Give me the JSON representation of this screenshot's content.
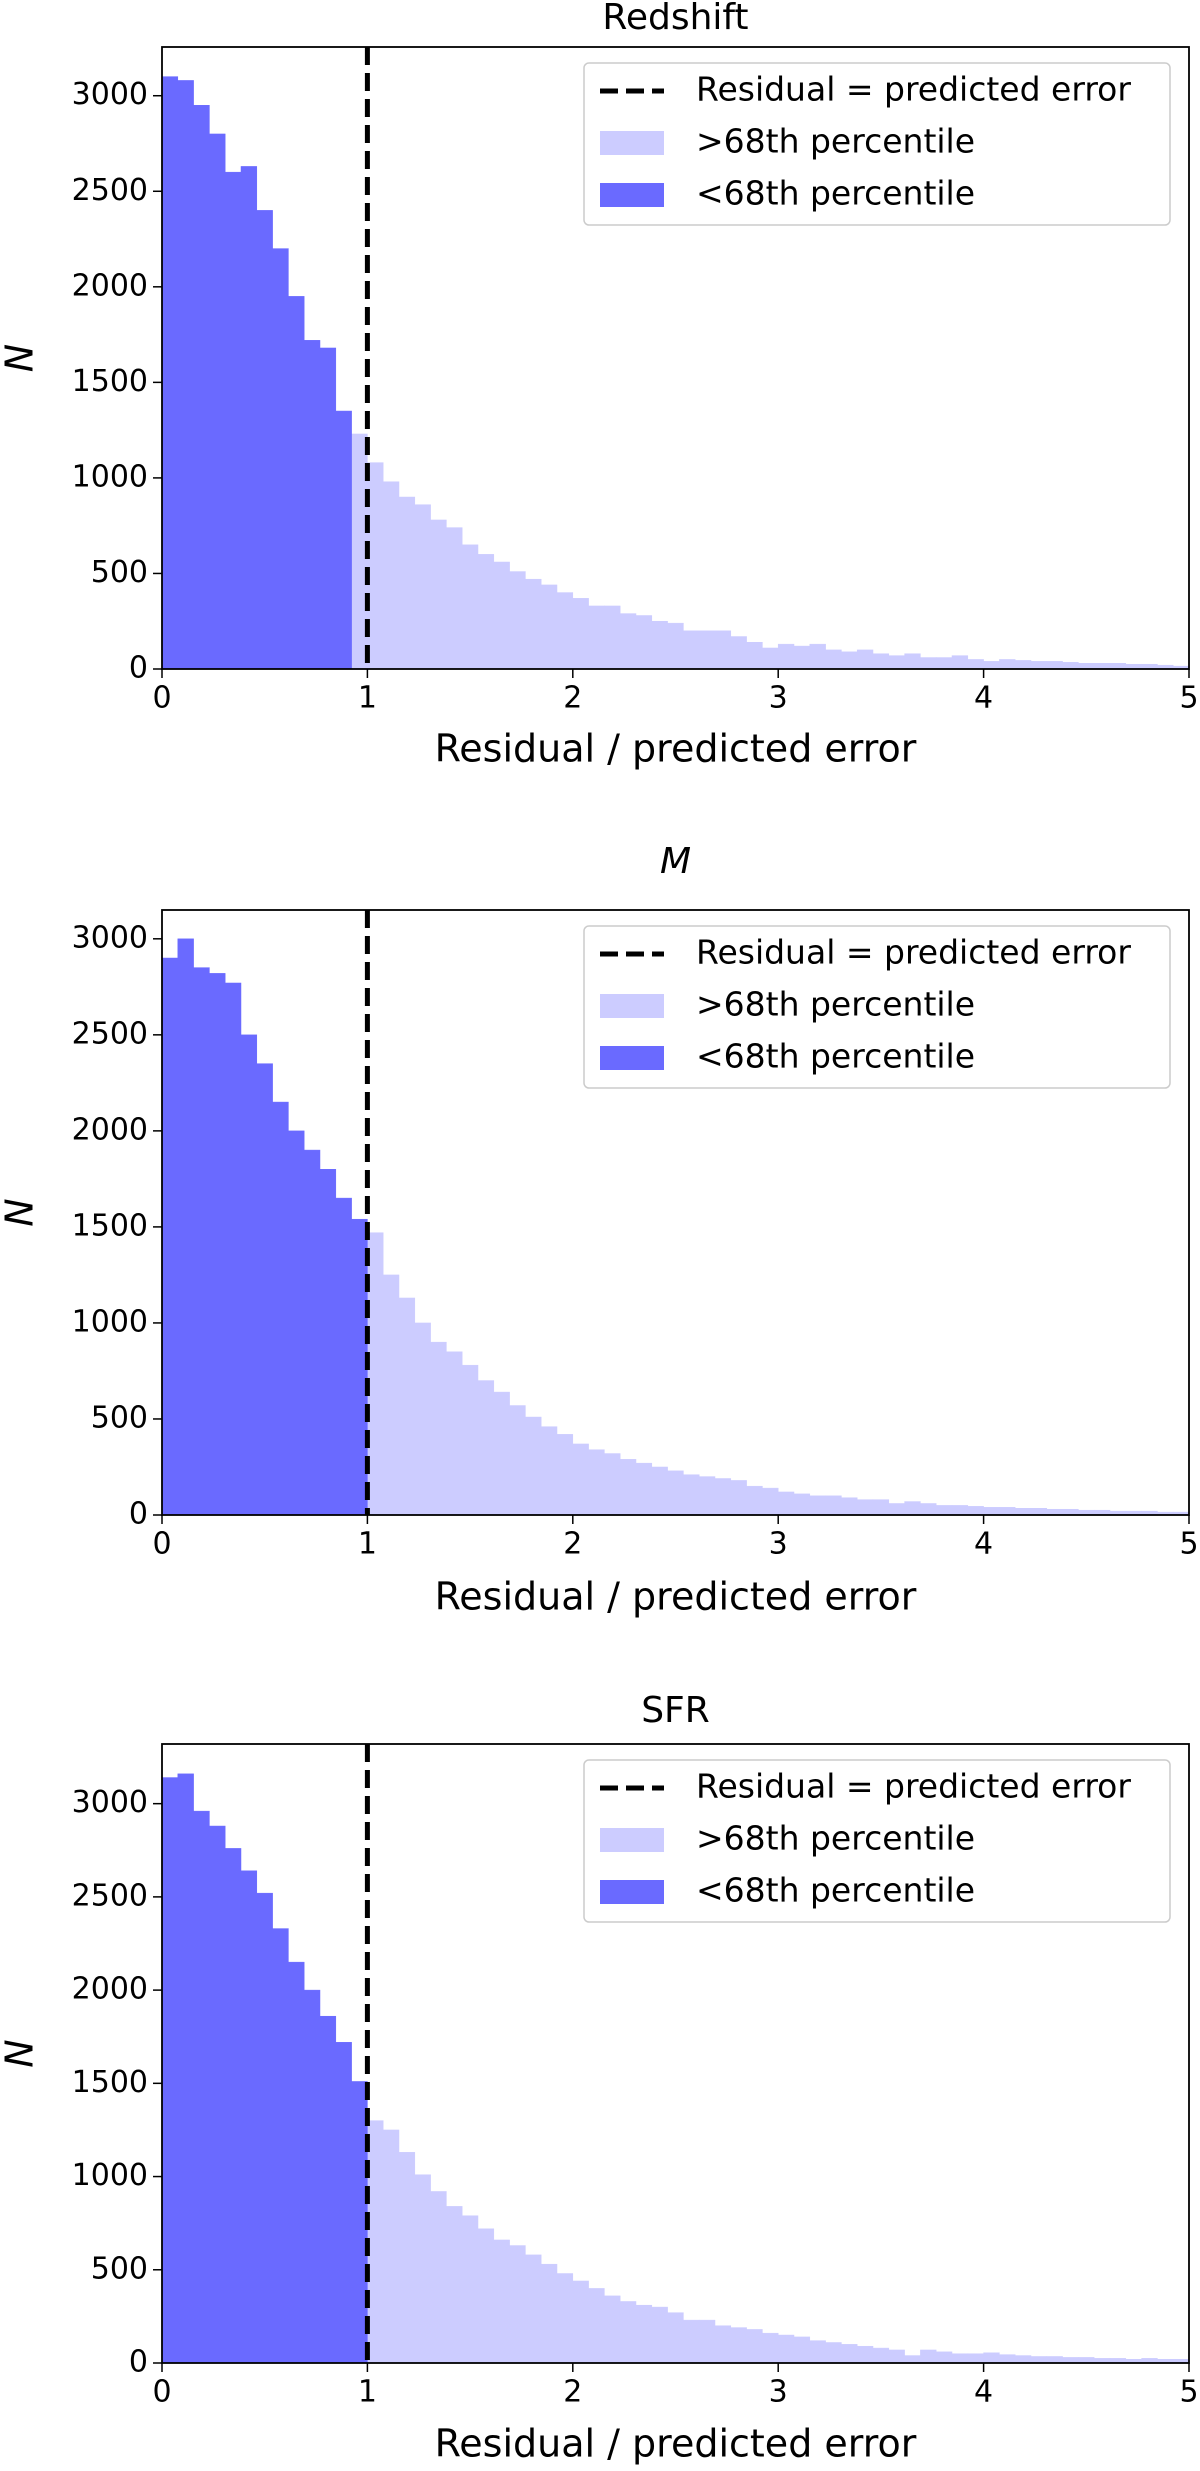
{
  "chart_data": [
    {
      "type": "histogram",
      "title": "Redshift",
      "x_label": "Residual / predicted error",
      "y_label": "N",
      "bins": [
        0,
        0.0769,
        0.1538,
        0.2308,
        0.3077,
        0.3846,
        0.4615,
        0.5385,
        0.6154,
        0.6923,
        0.7692,
        0.8462,
        0.9231,
        1,
        1.0769,
        1.1538,
        1.2308,
        1.3077,
        1.3846,
        1.4615,
        1.5385,
        1.6154,
        1.6923,
        1.7692,
        1.8462,
        1.9231,
        2,
        2.0769,
        2.1538,
        2.2308,
        2.3077,
        2.3846,
        2.4615,
        2.5385,
        2.6154,
        2.6923,
        2.7692,
        2.8462,
        2.9231,
        3,
        3.0769,
        3.1538,
        3.2308,
        3.3077,
        3.3846,
        3.4615,
        3.5385,
        3.6154,
        3.6923,
        3.7692,
        3.8462,
        3.9231,
        4,
        4.0769,
        4.1538,
        4.2308,
        4.3077,
        4.3846,
        4.4615,
        4.5385,
        4.6154,
        4.6923,
        4.7692,
        4.8462,
        4.9231,
        5
      ],
      "series": [
        {
          "name": ">68th percentile",
          "color": "#ccccff",
          "values": [
            null,
            null,
            null,
            null,
            null,
            null,
            null,
            null,
            null,
            null,
            null,
            null,
            1230,
            1080,
            980,
            900,
            860,
            780,
            740,
            650,
            600,
            560,
            510,
            470,
            440,
            400,
            370,
            330,
            330,
            290,
            280,
            250,
            240,
            200,
            200,
            200,
            170,
            140,
            110,
            130,
            120,
            130,
            100,
            90,
            100,
            80,
            70,
            80,
            60,
            60,
            70,
            50,
            40,
            50,
            45,
            40,
            40,
            35,
            30,
            30,
            30,
            25,
            25,
            20,
            15
          ]
        },
        {
          "name": "<68th percentile",
          "color": "#6a6aff",
          "values": [
            3100,
            3080,
            2950,
            2800,
            2600,
            2630,
            2400,
            2200,
            1950,
            1720,
            1680,
            1350,
            null,
            null,
            null,
            null,
            null,
            null,
            null,
            null,
            null,
            null,
            null,
            null,
            null,
            null,
            null,
            null,
            null,
            null,
            null,
            null,
            null,
            null,
            null,
            null,
            null,
            null,
            null,
            null,
            null,
            null,
            null,
            null,
            null,
            null,
            null,
            null,
            null,
            null,
            null,
            null,
            null,
            null,
            null,
            null,
            null,
            null,
            null,
            null,
            null,
            null,
            null,
            null,
            null
          ]
        }
      ],
      "vline": {
        "x": 1,
        "name": "Residual = predicted error",
        "color": "#000000"
      },
      "xlim": [
        0,
        5
      ],
      "ylim": [
        0,
        3255
      ],
      "xticks": [
        0,
        1,
        2,
        3,
        4,
        5
      ],
      "yticks": [
        0,
        500,
        1000,
        1500,
        2000,
        2500,
        3000
      ],
      "legend": "upper right"
    },
    {
      "type": "histogram",
      "title": "M",
      "x_label": "Residual / predicted error",
      "y_label": "N",
      "bins": [
        0,
        0.0769,
        0.1538,
        0.2308,
        0.3077,
        0.3846,
        0.4615,
        0.5385,
        0.6154,
        0.6923,
        0.7692,
        0.8462,
        0.9231,
        1,
        1.0769,
        1.1538,
        1.2308,
        1.3077,
        1.3846,
        1.4615,
        1.5385,
        1.6154,
        1.6923,
        1.7692,
        1.8462,
        1.9231,
        2,
        2.0769,
        2.1538,
        2.2308,
        2.3077,
        2.3846,
        2.4615,
        2.5385,
        2.6154,
        2.6923,
        2.7692,
        2.8462,
        2.9231,
        3,
        3.0769,
        3.1538,
        3.2308,
        3.3077,
        3.3846,
        3.4615,
        3.5385,
        3.6154,
        3.6923,
        3.7692,
        3.8462,
        3.9231,
        4,
        4.0769,
        4.1538,
        4.2308,
        4.3077,
        4.3846,
        4.4615,
        4.5385,
        4.6154,
        4.6923,
        4.7692,
        4.8462,
        4.9231,
        5
      ],
      "series": [
        {
          "name": ">68th percentile",
          "color": "#ccccff",
          "values": [
            null,
            null,
            null,
            null,
            null,
            null,
            null,
            null,
            null,
            null,
            null,
            null,
            null,
            1470,
            1250,
            1130,
            1000,
            900,
            850,
            780,
            700,
            640,
            570,
            510,
            460,
            420,
            370,
            340,
            320,
            290,
            270,
            250,
            230,
            210,
            200,
            190,
            180,
            150,
            140,
            120,
            110,
            100,
            100,
            90,
            80,
            80,
            60,
            70,
            60,
            50,
            50,
            45,
            40,
            40,
            35,
            35,
            30,
            30,
            25,
            25,
            20,
            20,
            20,
            15,
            15
          ]
        },
        {
          "name": "<68th percentile",
          "color": "#6a6aff",
          "values": [
            2900,
            3000,
            2850,
            2820,
            2770,
            2500,
            2350,
            2150,
            2000,
            1900,
            1800,
            1650,
            1540,
            null,
            null,
            null,
            null,
            null,
            null,
            null,
            null,
            null,
            null,
            null,
            null,
            null,
            null,
            null,
            null,
            null,
            null,
            null,
            null,
            null,
            null,
            null,
            null,
            null,
            null,
            null,
            null,
            null,
            null,
            null,
            null,
            null,
            null,
            null,
            null,
            null,
            null,
            null,
            null,
            null,
            null,
            null,
            null,
            null,
            null,
            null,
            null,
            null,
            null,
            null,
            null
          ]
        }
      ],
      "vline": {
        "x": 1,
        "name": "Residual = predicted error",
        "color": "#000000"
      },
      "xlim": [
        0,
        5
      ],
      "ylim": [
        0,
        3150
      ],
      "xticks": [
        0,
        1,
        2,
        3,
        4,
        5
      ],
      "yticks": [
        0,
        500,
        1000,
        1500,
        2000,
        2500,
        3000
      ],
      "legend": "upper right"
    },
    {
      "type": "histogram",
      "title": "SFR",
      "x_label": "Residual / predicted error",
      "y_label": "N",
      "bins": [
        0,
        0.0769,
        0.1538,
        0.2308,
        0.3077,
        0.3846,
        0.4615,
        0.5385,
        0.6154,
        0.6923,
        0.7692,
        0.8462,
        0.9231,
        1,
        1.0769,
        1.1538,
        1.2308,
        1.3077,
        1.3846,
        1.4615,
        1.5385,
        1.6154,
        1.6923,
        1.7692,
        1.8462,
        1.9231,
        2,
        2.0769,
        2.1538,
        2.2308,
        2.3077,
        2.3846,
        2.4615,
        2.5385,
        2.6154,
        2.6923,
        2.7692,
        2.8462,
        2.9231,
        3,
        3.0769,
        3.1538,
        3.2308,
        3.3077,
        3.3846,
        3.4615,
        3.5385,
        3.6154,
        3.6923,
        3.7692,
        3.8462,
        3.9231,
        4,
        4.0769,
        4.1538,
        4.2308,
        4.3077,
        4.3846,
        4.4615,
        4.5385,
        4.6154,
        4.6923,
        4.7692,
        4.8462,
        4.9231,
        5
      ],
      "series": [
        {
          "name": ">68th percentile",
          "color": "#ccccff",
          "values": [
            null,
            null,
            null,
            null,
            null,
            null,
            null,
            null,
            null,
            null,
            null,
            null,
            null,
            1300,
            1250,
            1130,
            1010,
            920,
            840,
            790,
            720,
            660,
            630,
            580,
            530,
            480,
            440,
            400,
            360,
            330,
            310,
            300,
            270,
            230,
            230,
            200,
            190,
            180,
            160,
            150,
            140,
            120,
            110,
            100,
            90,
            80,
            70,
            40,
            70,
            60,
            50,
            50,
            55,
            45,
            40,
            35,
            35,
            30,
            30,
            25,
            25,
            20,
            25,
            20,
            20
          ]
        },
        {
          "name": "<68th percentile",
          "color": "#6a6aff",
          "values": [
            3140,
            3160,
            2960,
            2880,
            2760,
            2640,
            2520,
            2330,
            2150,
            2000,
            1860,
            1720,
            1510,
            null,
            null,
            null,
            null,
            null,
            null,
            null,
            null,
            null,
            null,
            null,
            null,
            null,
            null,
            null,
            null,
            null,
            null,
            null,
            null,
            null,
            null,
            null,
            null,
            null,
            null,
            null,
            null,
            null,
            null,
            null,
            null,
            null,
            null,
            null,
            null,
            null,
            null,
            null,
            null,
            null,
            null,
            null,
            null,
            null,
            null,
            null,
            null,
            null,
            null,
            null,
            null
          ]
        }
      ],
      "vline": {
        "x": 1,
        "name": "Residual = predicted error",
        "color": "#000000"
      },
      "xlim": [
        0,
        5
      ],
      "ylim": [
        0,
        3320
      ],
      "xticks": [
        0,
        1,
        2,
        3,
        4,
        5
      ],
      "yticks": [
        0,
        500,
        1000,
        1500,
        2000,
        2500,
        3000
      ],
      "legend": "upper right"
    }
  ]
}
